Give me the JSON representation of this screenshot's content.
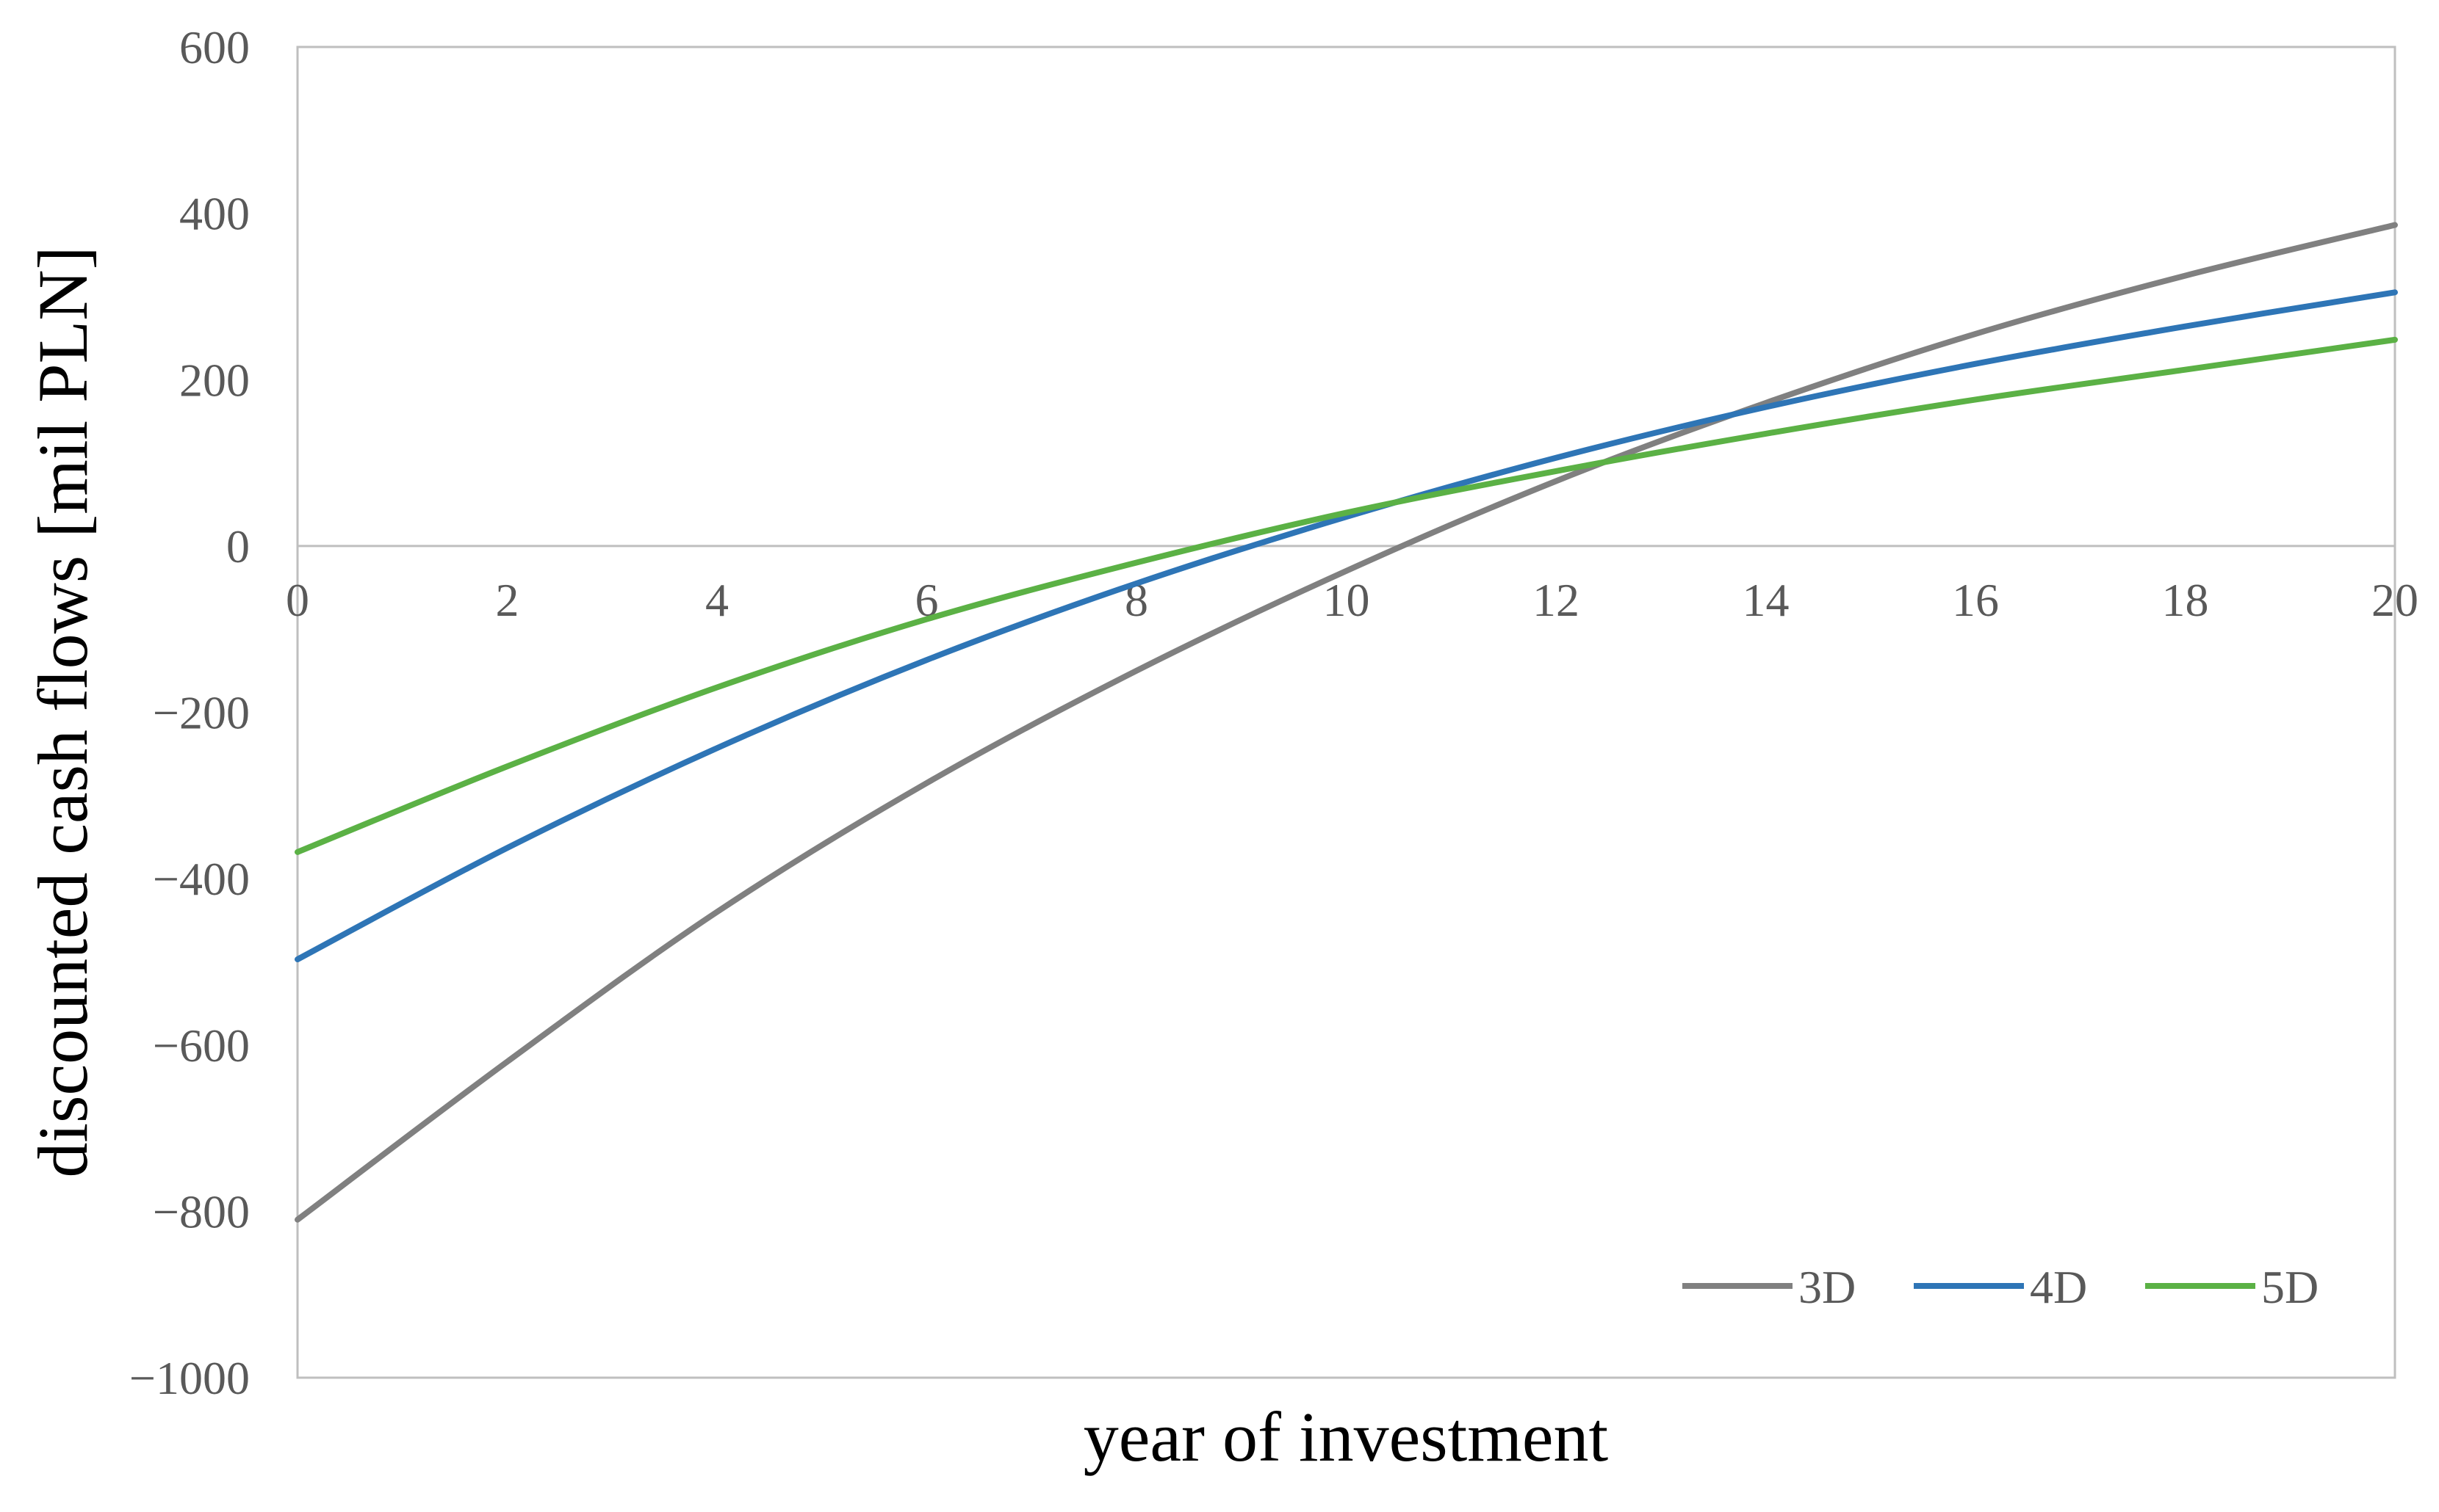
{
  "chart_data": {
    "type": "line",
    "title": "",
    "xlabel": "year of investment",
    "ylabel": "discounted cash flows [mil PLN]",
    "xlim": [
      0,
      20
    ],
    "ylim": [
      -1000,
      600
    ],
    "x_ticks": [
      "0",
      "2",
      "4",
      "6",
      "8",
      "10",
      "12",
      "14",
      "16",
      "18",
      "20"
    ],
    "y_ticks": [
      "600",
      "400",
      "200",
      "0",
      "−200",
      "−400",
      "−600",
      "−800",
      "−1000"
    ],
    "grid": false,
    "legend_position": "bottom-right",
    "x": [
      0,
      2,
      4,
      6,
      8,
      10,
      12,
      14,
      16,
      18,
      20
    ],
    "series": [
      {
        "name": "3D",
        "color": "#808080",
        "values": [
          -810,
          -620,
          -440,
          -285,
          -150,
          -30,
          78,
          172,
          255,
          325,
          386
        ]
      },
      {
        "name": "4D",
        "color": "#2E75B6",
        "values": [
          -497,
          -363,
          -243,
          -137,
          -45,
          35,
          106,
          167,
          219,
          264,
          305
        ]
      },
      {
        "name": "5D",
        "color": "#5BB145",
        "values": [
          -368,
          -265,
          -170,
          -88,
          -20,
          40,
          90,
          135,
          176,
          212,
          248
        ]
      }
    ]
  }
}
